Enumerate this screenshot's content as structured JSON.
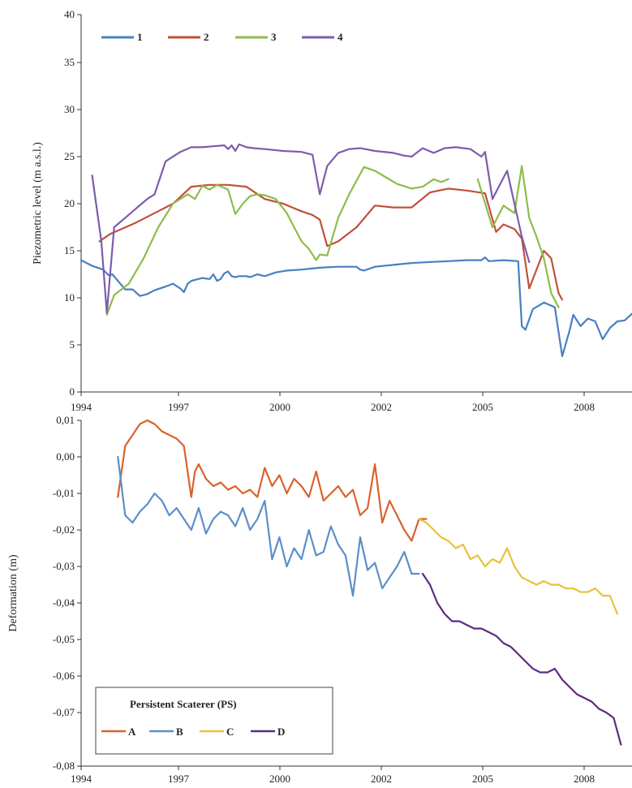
{
  "chart_data": [
    {
      "type": "line",
      "title": "",
      "xlabel": "",
      "ylabel": "Piezometric level (m a.s.l.)",
      "xlim": [
        1994,
        2009
      ],
      "ylim": [
        0,
        40
      ],
      "yticks": [
        "0",
        "5",
        "10",
        "15",
        "20",
        "25",
        "30",
        "35",
        "40"
      ],
      "xtick_labels": [
        "1994",
        "1997",
        "2000",
        "2002",
        "2005",
        "2008"
      ],
      "legend": {
        "position": "top-left",
        "entries": [
          "1",
          "2",
          "3",
          "4"
        ]
      },
      "series": [
        {
          "name": "1",
          "color": "#4a7fc1",
          "x": [
            1994.0,
            1994.3,
            1994.6,
            1994.75,
            1994.85,
            1995.0,
            1995.2,
            1995.4,
            1995.6,
            1995.8,
            1996.0,
            1996.3,
            1996.5,
            1996.7,
            1996.8,
            1996.9,
            1997.0,
            1997.3,
            1997.5,
            1997.6,
            1997.7,
            1997.8,
            1997.9,
            1998.0,
            1998.1,
            1998.2,
            1998.3,
            1998.5,
            1998.6,
            1998.8,
            1998.9,
            1999.0,
            1999.3,
            1999.6,
            2000.0,
            2000.5,
            2001.0,
            2001.5,
            2001.6,
            2001.7,
            2002.0,
            2002.5,
            2003.0,
            2003.5,
            2004.0,
            2004.5,
            2004.9,
            2005.0,
            2005.1,
            2005.5,
            2005.9,
            2006.0,
            2006.1,
            2006.3,
            2006.6,
            2006.9,
            2007.1,
            2007.3,
            2007.4,
            2007.6,
            2007.8,
            2008.0,
            2008.2,
            2008.4,
            2008.6,
            2008.8,
            2009.0
          ],
          "y": [
            14,
            13.4,
            13,
            12.4,
            12.5,
            11.8,
            10.9,
            10.9,
            10.2,
            10.4,
            10.8,
            11.2,
            11.5,
            11.0,
            10.6,
            11.5,
            11.8,
            12.1,
            12.0,
            12.5,
            11.8,
            12.0,
            12.6,
            12.8,
            12.3,
            12.2,
            12.3,
            12.3,
            12.2,
            12.5,
            12.4,
            12.3,
            12.7,
            12.9,
            13.0,
            13.2,
            13.3,
            13.3,
            13.0,
            12.9,
            13.3,
            13.5,
            13.7,
            13.8,
            13.9,
            14.0,
            14.0,
            14.3,
            13.9,
            14.0,
            13.9,
            7.0,
            6.6,
            8.8,
            9.5,
            9.0,
            3.8,
            6.5,
            8.2,
            7.0,
            7.8,
            7.5,
            5.6,
            6.8,
            7.5,
            7.6,
            8.3
          ]
        },
        {
          "name": "2",
          "color": "#c0503a",
          "x": [
            1994.5,
            1994.8,
            1995.5,
            1996.5,
            1997.0,
            1997.5,
            1998.0,
            1998.5,
            1999.0,
            1999.5,
            2000.0,
            2000.3,
            2000.5,
            2000.7,
            2001.0,
            2001.5,
            2002.0,
            2002.5,
            2003.0,
            2003.5,
            2004.0,
            2004.5,
            2005.0,
            2005.3,
            2005.5,
            2005.8,
            2006.0,
            2006.2,
            2006.6,
            2006.8,
            2007.0,
            2007.1
          ],
          "y": [
            16,
            16.8,
            18.0,
            20.0,
            21.8,
            22.0,
            22.0,
            21.8,
            20.5,
            20.0,
            19.2,
            18.8,
            18.3,
            15.5,
            16.0,
            17.5,
            19.8,
            19.6,
            19.6,
            21.2,
            21.6,
            21.4,
            21.1,
            17.0,
            17.8,
            17.3,
            16.3,
            11.0,
            15.0,
            14.2,
            10.5,
            9.8
          ]
        },
        {
          "name": "3",
          "color": "#8fbc4a",
          "x": [
            1994.7,
            1994.9,
            1995.3,
            1995.7,
            1996.1,
            1996.5,
            1996.9,
            1997.1,
            1997.3,
            1997.5,
            1997.7,
            1998.0,
            1998.2,
            1998.4,
            1998.6,
            1998.8,
            1999.0,
            1999.3,
            1999.6,
            2000.0,
            2000.2,
            2000.4,
            2000.5,
            2000.7,
            2001.0,
            2001.3,
            2001.7,
            2002.0,
            2002.3,
            2002.6,
            2003.0,
            2003.3,
            2003.6,
            2003.8,
            2004.0,
            2004.1,
            2004.3,
            2004.8,
            2005.2,
            2005.5,
            2005.8,
            2006.0,
            2006.2,
            2006.4,
            2006.6,
            2006.8,
            2007.0
          ],
          "y": [
            8.2,
            10.3,
            11.5,
            14.2,
            17.5,
            20.0,
            21.0,
            20.5,
            21.9,
            21.5,
            22.0,
            21.5,
            18.9,
            20.0,
            20.8,
            21.0,
            20.9,
            20.5,
            19.0,
            16.0,
            15.2,
            14.0,
            14.6,
            14.5,
            18.5,
            21.0,
            23.9,
            23.5,
            22.8,
            22.1,
            21.6,
            21.8,
            22.6,
            22.3,
            22.6,
            null,
            null,
            22.6,
            17.5,
            19.8,
            19.0,
            24.0,
            18.5,
            16.5,
            14.2,
            10.5,
            9.0
          ]
        },
        {
          "name": "4",
          "color": "#7d5bae",
          "x": [
            1994.3,
            1994.55,
            1994.7,
            1994.9,
            1995.2,
            1995.5,
            1995.8,
            1996.0,
            1996.3,
            1996.7,
            1997.0,
            1997.3,
            1997.6,
            1997.9,
            1998.0,
            1998.1,
            1998.2,
            1998.3,
            1998.5,
            1998.7,
            1999.0,
            1999.5,
            2000.0,
            2000.3,
            2000.5,
            2000.7,
            2001.0,
            2001.3,
            2001.6,
            2002.0,
            2002.5,
            2002.8,
            2003.0,
            2003.3,
            2003.6,
            2003.9,
            2004.2,
            2004.6,
            2004.9,
            2005.0,
            2005.2,
            2005.4,
            2005.6,
            2005.8,
            2006.0,
            2006.2
          ],
          "y": [
            23.0,
            16.0,
            8.4,
            17.5,
            18.5,
            19.5,
            20.5,
            21.0,
            24.5,
            25.5,
            26.0,
            26.0,
            26.1,
            26.2,
            25.8,
            26.2,
            25.6,
            26.3,
            26.0,
            25.9,
            25.8,
            25.6,
            25.5,
            25.2,
            21.0,
            24.0,
            25.4,
            25.8,
            25.9,
            25.6,
            25.4,
            25.1,
            25.0,
            25.9,
            25.4,
            25.9,
            26.0,
            25.8,
            25.0,
            25.5,
            20.5,
            22.0,
            23.5,
            20.0,
            16.5,
            13.8
          ]
        }
      ]
    },
    {
      "type": "line",
      "title": "",
      "xlabel": "",
      "ylabel": "Deformation (m)",
      "xlim": [
        1994,
        2009
      ],
      "ylim": [
        -0.08,
        0.015
      ],
      "yticks": [
        "0,01",
        "0,00",
        "-0,01",
        "-0,02",
        "-0,03",
        "-0,04",
        "-0,05",
        "-0,06",
        "-0,07",
        "-0,08"
      ],
      "xtick_labels": [
        "1994",
        "1997",
        "2000",
        "2002",
        "2005",
        "2008"
      ],
      "legend": {
        "position": "bottom-left",
        "title": "Persistent Scaterer (PS)",
        "entries": [
          "A",
          "B",
          "C",
          "D"
        ]
      },
      "series": [
        {
          "name": "A",
          "color": "#d9622b",
          "x": [
            1995.0,
            1995.2,
            1995.4,
            1995.6,
            1995.8,
            1996.0,
            1996.2,
            1996.4,
            1996.6,
            1996.8,
            1997.0,
            1997.1,
            1997.2,
            1997.4,
            1997.6,
            1997.8,
            1998.0,
            1998.2,
            1998.4,
            1998.6,
            1998.8,
            1999.0,
            1999.2,
            1999.4,
            1999.6,
            1999.8,
            2000.0,
            2000.2,
            2000.4,
            2000.6,
            2000.8,
            2001.0,
            2001.2,
            2001.4,
            2001.6,
            2001.8,
            2002.0,
            2002.2,
            2002.4,
            2002.6,
            2002.8,
            2003.0,
            2003.2,
            2003.4
          ],
          "y": [
            -0.011,
            0.003,
            0.006,
            0.009,
            0.01,
            0.009,
            0.007,
            0.006,
            0.005,
            0.003,
            -0.011,
            -0.004,
            -0.002,
            -0.006,
            -0.008,
            -0.007,
            -0.009,
            -0.008,
            -0.01,
            -0.009,
            -0.011,
            -0.003,
            -0.008,
            -0.005,
            -0.01,
            -0.006,
            -0.008,
            -0.011,
            -0.004,
            -0.012,
            -0.01,
            -0.008,
            -0.011,
            -0.009,
            -0.016,
            -0.014,
            -0.002,
            -0.018,
            -0.012,
            -0.016,
            -0.02,
            -0.023,
            -0.017,
            -0.017
          ]
        },
        {
          "name": "B",
          "color": "#5b8fc9",
          "x": [
            1995.0,
            1995.2,
            1995.4,
            1995.6,
            1995.8,
            1996.0,
            1996.2,
            1996.4,
            1996.6,
            1996.8,
            1997.0,
            1997.2,
            1997.4,
            1997.6,
            1997.8,
            1998.0,
            1998.2,
            1998.4,
            1998.6,
            1998.8,
            1999.0,
            1999.2,
            1999.4,
            1999.6,
            1999.8,
            2000.0,
            2000.2,
            2000.4,
            2000.6,
            2000.8,
            2001.0,
            2001.2,
            2001.4,
            2001.6,
            2001.8,
            2002.0,
            2002.2,
            2002.4,
            2002.6,
            2002.8,
            2003.0,
            2003.2
          ],
          "y": [
            0.0,
            -0.016,
            -0.018,
            -0.015,
            -0.013,
            -0.01,
            -0.012,
            -0.016,
            -0.014,
            -0.017,
            -0.02,
            -0.014,
            -0.021,
            -0.017,
            -0.015,
            -0.016,
            -0.019,
            -0.014,
            -0.02,
            -0.017,
            -0.012,
            -0.028,
            -0.022,
            -0.03,
            -0.025,
            -0.028,
            -0.02,
            -0.027,
            -0.026,
            -0.019,
            -0.024,
            -0.027,
            -0.038,
            -0.022,
            -0.031,
            -0.029,
            -0.036,
            -0.033,
            -0.03,
            -0.026,
            -0.032,
            -0.032
          ]
        },
        {
          "name": "C",
          "color": "#e8c23a",
          "x": [
            2003.2,
            2003.4,
            2003.6,
            2003.8,
            2004.0,
            2004.2,
            2004.4,
            2004.6,
            2004.8,
            2005.0,
            2005.2,
            2005.4,
            2005.6,
            2005.8,
            2006.0,
            2006.2,
            2006.4,
            2006.6,
            2006.8,
            2007.0,
            2007.2,
            2007.4,
            2007.6,
            2007.8,
            2008.0,
            2008.2,
            2008.4,
            2008.6
          ],
          "y": [
            -0.017,
            -0.018,
            -0.02,
            -0.022,
            -0.023,
            -0.025,
            -0.024,
            -0.028,
            -0.027,
            -0.03,
            -0.028,
            -0.029,
            -0.025,
            -0.03,
            -0.033,
            -0.034,
            -0.035,
            -0.034,
            -0.035,
            -0.035,
            -0.036,
            -0.036,
            -0.037,
            -0.037,
            -0.036,
            -0.038,
            -0.038,
            -0.043
          ]
        },
        {
          "name": "D",
          "color": "#5c2a82",
          "x": [
            2003.3,
            2003.5,
            2003.7,
            2003.9,
            2004.1,
            2004.3,
            2004.5,
            2004.7,
            2004.9,
            2005.1,
            2005.3,
            2005.5,
            2005.7,
            2005.9,
            2006.1,
            2006.3,
            2006.5,
            2006.7,
            2006.9,
            2007.1,
            2007.3,
            2007.5,
            2007.7,
            2007.9,
            2008.1,
            2008.3,
            2008.5,
            2008.7
          ],
          "y": [
            -0.032,
            -0.035,
            -0.04,
            -0.043,
            -0.045,
            -0.045,
            -0.046,
            -0.047,
            -0.047,
            -0.048,
            -0.049,
            -0.051,
            -0.052,
            -0.054,
            -0.056,
            -0.058,
            -0.059,
            -0.059,
            -0.058,
            -0.061,
            -0.063,
            -0.065,
            -0.066,
            -0.067,
            -0.069,
            -0.07,
            -0.071,
            -0.076
          ]
        }
      ]
    }
  ]
}
